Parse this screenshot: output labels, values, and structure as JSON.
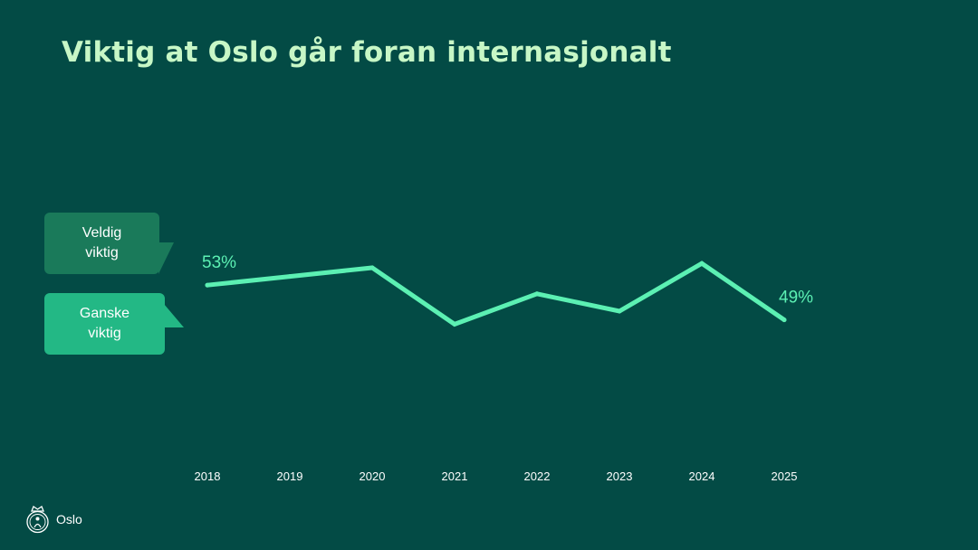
{
  "title": "Viktig at Oslo går foran internasjonalt",
  "callouts": {
    "very_important": [
      "Veldig",
      "viktig"
    ],
    "fairly_important": [
      "Ganske",
      "viktig"
    ]
  },
  "logo": {
    "text": "Oslo"
  },
  "colors": {
    "background": "#034b45",
    "title": "#c7f7c6",
    "line": "#5cf0b3",
    "callout_dark": "#1a7a5a",
    "callout_light": "#23b885"
  },
  "chart_data": {
    "type": "line",
    "x": [
      "2018",
      "2019",
      "2020",
      "2021",
      "2022",
      "2023",
      "2024",
      "2025"
    ],
    "series": [
      {
        "values": [
          53,
          54,
          55,
          48.5,
          52,
          50,
          55.5,
          49
        ]
      }
    ],
    "data_labels": {
      "first": "53%",
      "last": "49%"
    },
    "ylim": [
      40,
      65
    ],
    "grid": false
  }
}
